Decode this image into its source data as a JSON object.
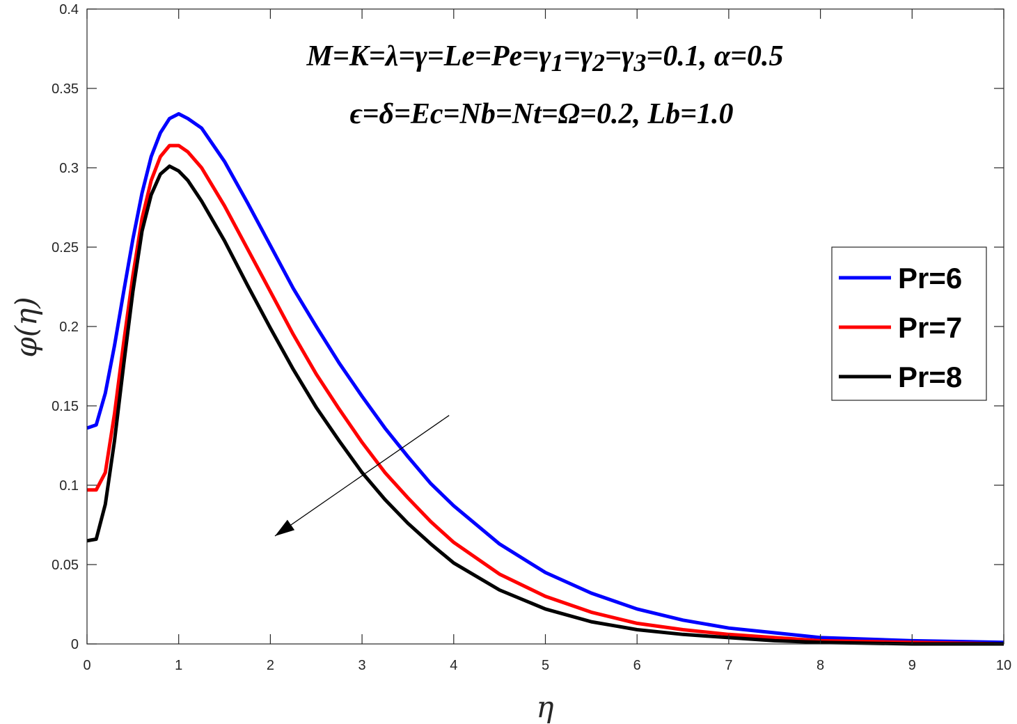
{
  "chart_data": {
    "type": "line",
    "xlabel": "η",
    "ylabel": "φ(η)",
    "xlim": [
      0,
      10
    ],
    "ylim": [
      0,
      0.4
    ],
    "xticks": [
      "0",
      "1",
      "2",
      "3",
      "4",
      "5",
      "6",
      "7",
      "8",
      "9",
      "10"
    ],
    "yticks": [
      "0",
      "0.05",
      "0.1",
      "0.15",
      "0.2",
      "0.25",
      "0.3",
      "0.35",
      "0.4"
    ],
    "grid": false,
    "legend_position": "right",
    "annotations": [
      "M=K=λ=γ=Le=Pe=γ1=γ2=γ3=0.1, α=0.5",
      "ϵ=δ=Ec=Nb=Nt=Ω=0.2, Lb=1.0"
    ],
    "arrow": {
      "from": [
        3.95,
        0.144
      ],
      "to": [
        2.05,
        0.068
      ]
    },
    "x": [
      0,
      0.1,
      0.2,
      0.3,
      0.4,
      0.5,
      0.6,
      0.7,
      0.8,
      0.9,
      1.0,
      1.1,
      1.25,
      1.5,
      1.75,
      2.0,
      2.25,
      2.5,
      2.75,
      3.0,
      3.25,
      3.5,
      3.75,
      4.0,
      4.5,
      5.0,
      5.5,
      6.0,
      6.5,
      7.0,
      7.5,
      8.0,
      9.0,
      10.0
    ],
    "series": [
      {
        "name": "Pr=6",
        "color": "#0000ff",
        "values": [
          0.136,
          0.138,
          0.158,
          0.188,
          0.222,
          0.255,
          0.284,
          0.307,
          0.322,
          0.331,
          0.334,
          0.331,
          0.325,
          0.304,
          0.278,
          0.251,
          0.224,
          0.2,
          0.177,
          0.156,
          0.136,
          0.118,
          0.101,
          0.087,
          0.063,
          0.045,
          0.032,
          0.022,
          0.015,
          0.01,
          0.007,
          0.004,
          0.002,
          0.001
        ]
      },
      {
        "name": "Pr=7",
        "color": "#ff0000",
        "values": [
          0.097,
          0.097,
          0.108,
          0.145,
          0.19,
          0.232,
          0.268,
          0.292,
          0.307,
          0.314,
          0.314,
          0.31,
          0.3,
          0.276,
          0.249,
          0.222,
          0.195,
          0.17,
          0.148,
          0.127,
          0.108,
          0.092,
          0.077,
          0.064,
          0.044,
          0.03,
          0.02,
          0.013,
          0.009,
          0.006,
          0.004,
          0.002,
          0.001,
          0.0
        ]
      },
      {
        "name": "Pr=8",
        "color": "#000000",
        "values": [
          0.065,
          0.066,
          0.088,
          0.128,
          0.176,
          0.222,
          0.26,
          0.283,
          0.296,
          0.301,
          0.298,
          0.292,
          0.279,
          0.254,
          0.226,
          0.199,
          0.173,
          0.149,
          0.128,
          0.108,
          0.091,
          0.076,
          0.063,
          0.051,
          0.034,
          0.022,
          0.014,
          0.009,
          0.006,
          0.004,
          0.002,
          0.001,
          0.0,
          0.0
        ]
      }
    ]
  }
}
